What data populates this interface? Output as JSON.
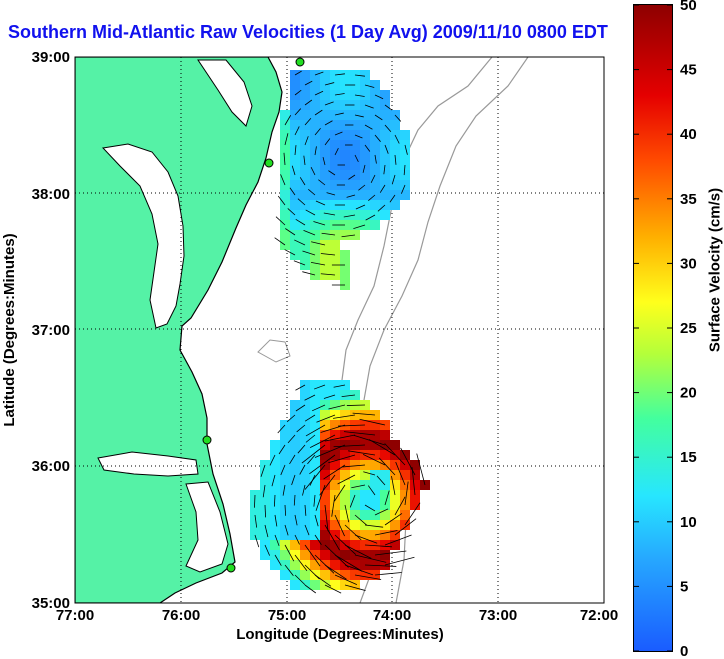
{
  "title": "Southern Mid-Atlantic Raw Velocities (1 Day Avg) 2009/11/10 0800 EDT",
  "xlabel": "Longitude (Degrees:Minutes)",
  "ylabel": "Latitude (Degrees:Minutes)",
  "x_ticks": [
    "77:00",
    "76:00",
    "75:00",
    "74:00",
    "73:00",
    "72:00"
  ],
  "y_ticks": [
    "39:00",
    "38:00",
    "37:00",
    "36:00",
    "35:00"
  ],
  "colorbar": {
    "label": "Surface Velocity (cm/s)",
    "min": 0,
    "max": 50,
    "ticks": [
      "0",
      "5",
      "10",
      "15",
      "20",
      "25",
      "30",
      "35",
      "40",
      "45",
      "50"
    ]
  },
  "colors": {
    "land": "#55f2a6",
    "title": "#1111ee",
    "bathymetry": "#999999",
    "site_marker": "#22dd22"
  },
  "fields": [
    {
      "region": "northern",
      "speed_cms_range": [
        5,
        25
      ]
    },
    {
      "region": "southern",
      "speed_cms_range": [
        10,
        50
      ]
    }
  ]
}
